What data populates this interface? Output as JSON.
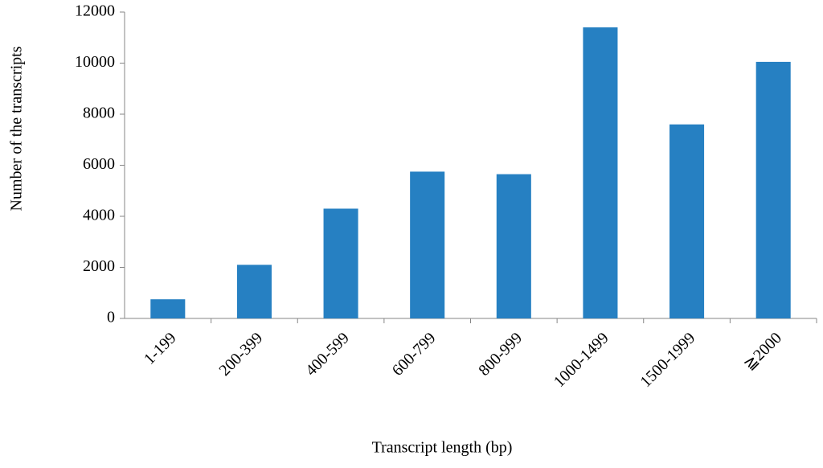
{
  "chart_data": {
    "type": "bar",
    "x_label": "Transcript length (bp)",
    "y_label": "Number of the transcripts",
    "categories": [
      "1-199",
      "200-399",
      "400-599",
      "600-799",
      "800-999",
      "1000-1499",
      "1500-1999",
      "≧2000"
    ],
    "values": [
      750,
      2100,
      4300,
      5750,
      5650,
      11400,
      7600,
      10050
    ],
    "color": "#2680c2",
    "ylim": [
      0,
      12000
    ],
    "yticks": [
      0,
      2000,
      4000,
      6000,
      8000,
      10000,
      12000
    ],
    "grid": false
  }
}
